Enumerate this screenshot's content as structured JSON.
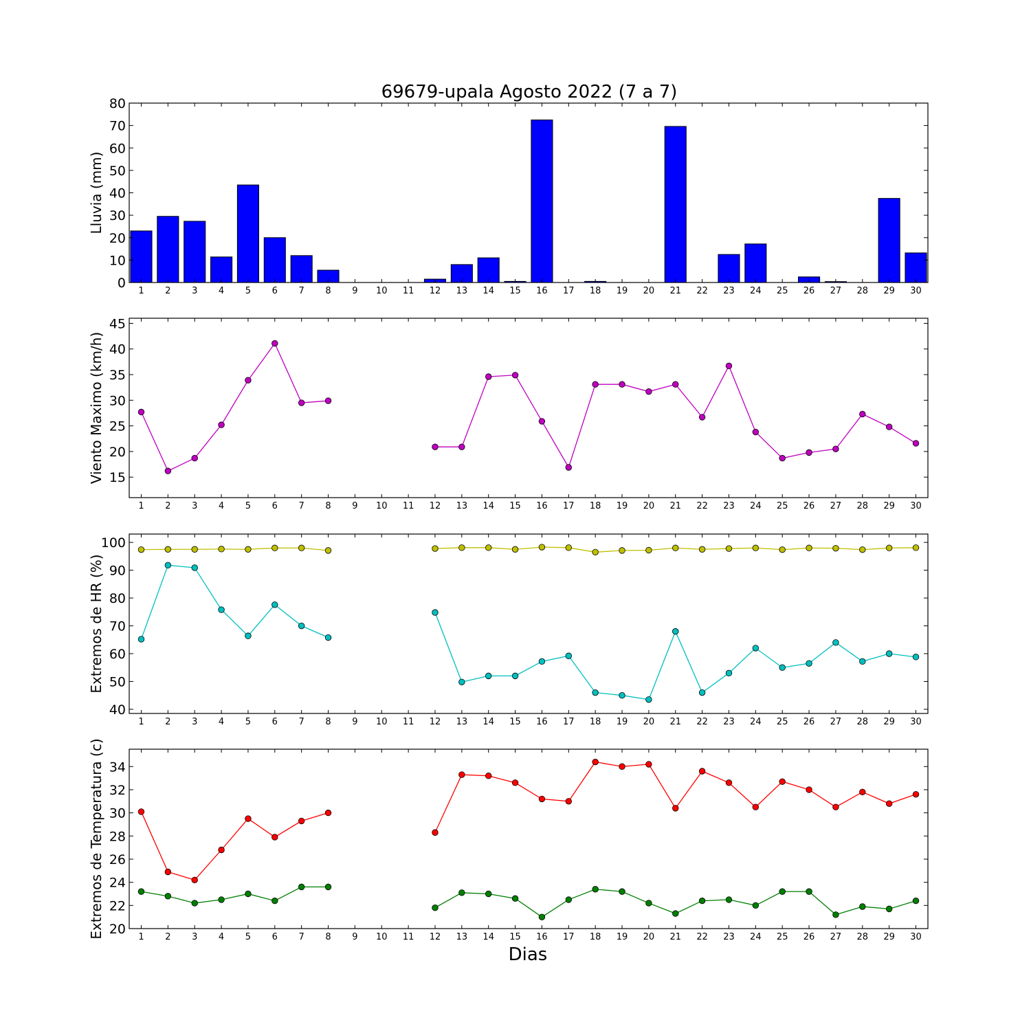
{
  "title": "69679-upala Agosto 2022  (7 a 7)",
  "xlabel": "Dias",
  "chart_data": [
    {
      "type": "bar",
      "ylabel": "Lluvia (mm)",
      "x": [
        1,
        2,
        3,
        4,
        5,
        6,
        7,
        8,
        9,
        10,
        11,
        12,
        13,
        14,
        15,
        16,
        17,
        18,
        19,
        20,
        21,
        22,
        23,
        24,
        25,
        26,
        27,
        28,
        29,
        30
      ],
      "ylim": [
        0,
        80
      ],
      "yticks": [
        0,
        10,
        20,
        30,
        40,
        50,
        60,
        70,
        80
      ],
      "series": [
        {
          "color": "#0000ff",
          "values": [
            23,
            29.5,
            27.3,
            11.4,
            43.5,
            20,
            12,
            5.5,
            0,
            0,
            0,
            1.5,
            8,
            11,
            0.5,
            72.5,
            0,
            0.5,
            0,
            0,
            69.6,
            0,
            12.5,
            17.2,
            0,
            2.5,
            0.4,
            0,
            37.5,
            13.2
          ]
        }
      ]
    },
    {
      "type": "line",
      "ylabel": "Viento Maximo (km/h)",
      "x": [
        1,
        2,
        3,
        4,
        5,
        6,
        7,
        8,
        9,
        10,
        11,
        12,
        13,
        14,
        15,
        16,
        17,
        18,
        19,
        20,
        21,
        22,
        23,
        24,
        25,
        26,
        27,
        28,
        29,
        30
      ],
      "ylim": [
        11,
        46
      ],
      "yticks": [
        15,
        20,
        25,
        30,
        35,
        40,
        45
      ],
      "series": [
        {
          "color": "#bf00bf",
          "values": [
            27.7,
            16.2,
            18.7,
            25.2,
            33.9,
            41.1,
            29.5,
            29.9,
            null,
            null,
            null,
            20.9,
            20.9,
            34.6,
            34.9,
            25.9,
            16.9,
            33.1,
            33.1,
            31.7,
            33.1,
            26.7,
            36.7,
            23.8,
            18.7,
            19.8,
            20.5,
            27.3,
            24.8,
            21.6
          ]
        }
      ]
    },
    {
      "type": "line",
      "ylabel": "Extremos de HR (%)",
      "x": [
        1,
        2,
        3,
        4,
        5,
        6,
        7,
        8,
        9,
        10,
        11,
        12,
        13,
        14,
        15,
        16,
        17,
        18,
        19,
        20,
        21,
        22,
        23,
        24,
        25,
        26,
        27,
        28,
        29,
        30
      ],
      "ylim": [
        38.5,
        103
      ],
      "yticks": [
        40,
        50,
        60,
        70,
        80,
        90,
        100
      ],
      "series": [
        {
          "color": "#bfbf00",
          "values": [
            97.4,
            97.5,
            97.5,
            97.6,
            97.5,
            98,
            98,
            97.1,
            null,
            null,
            null,
            97.8,
            98.1,
            98.1,
            97.5,
            98.3,
            98.1,
            96.5,
            97.1,
            97.2,
            98,
            97.5,
            97.8,
            98,
            97.4,
            98,
            97.9,
            97.4,
            98,
            98.1
          ]
        },
        {
          "color": "#00bfbf",
          "values": [
            65.2,
            91.8,
            90.9,
            75.8,
            66.4,
            77.6,
            70,
            65.8,
            null,
            null,
            null,
            74.8,
            49.8,
            52,
            52,
            57.2,
            59.2,
            46,
            45,
            43.5,
            68,
            46,
            53,
            62,
            55,
            56.5,
            64,
            57.2,
            60,
            58.8
          ]
        }
      ]
    },
    {
      "type": "line",
      "ylabel": "Extremos de Temperatura (c)",
      "x": [
        1,
        2,
        3,
        4,
        5,
        6,
        7,
        8,
        9,
        10,
        11,
        12,
        13,
        14,
        15,
        16,
        17,
        18,
        19,
        20,
        21,
        22,
        23,
        24,
        25,
        26,
        27,
        28,
        29,
        30
      ],
      "ylim": [
        20,
        35.5
      ],
      "yticks": [
        20,
        22,
        24,
        26,
        28,
        30,
        32,
        34
      ],
      "series": [
        {
          "color": "#ff0000",
          "values": [
            30.1,
            24.9,
            24.2,
            26.8,
            29.5,
            27.9,
            29.3,
            30,
            null,
            null,
            null,
            28.3,
            33.3,
            33.2,
            32.6,
            31.2,
            31,
            34.4,
            34,
            34.2,
            30.4,
            33.6,
            32.6,
            30.5,
            32.7,
            32,
            30.5,
            31.8,
            30.8,
            31.6
          ]
        },
        {
          "color": "#007f00",
          "values": [
            23.2,
            22.8,
            22.2,
            22.5,
            23,
            22.4,
            23.6,
            23.6,
            null,
            null,
            null,
            21.8,
            23.1,
            23,
            22.6,
            21,
            22.5,
            23.4,
            23.2,
            22.2,
            21.3,
            22.4,
            22.5,
            22,
            23.2,
            23.2,
            21.2,
            21.9,
            21.7,
            22.4
          ]
        }
      ]
    }
  ]
}
